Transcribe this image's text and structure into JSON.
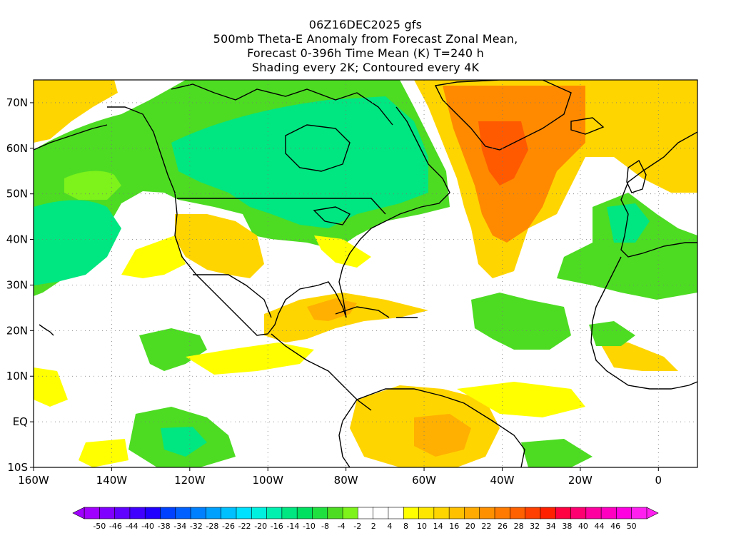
{
  "titles": {
    "line1": "06Z16DEC2025 gfs",
    "line2": "500mb Theta-E Anomaly from Forecast Zonal Mean,",
    "line3": "Forecast 0-396h Time Mean (K) T=240 h",
    "line4": "Shading every 2K; Contoured every 4K"
  },
  "map": {
    "lon_range": [
      -160,
      10
    ],
    "lat_range": [
      -10,
      75
    ],
    "x_ticks": [
      {
        "lon": -160,
        "label": "160W"
      },
      {
        "lon": -140,
        "label": "140W"
      },
      {
        "lon": -120,
        "label": "120W"
      },
      {
        "lon": -100,
        "label": "100W"
      },
      {
        "lon": -80,
        "label": "80W"
      },
      {
        "lon": -60,
        "label": "60W"
      },
      {
        "lon": -40,
        "label": "40W"
      },
      {
        "lon": -20,
        "label": "20W"
      },
      {
        "lon": 0,
        "label": "0"
      }
    ],
    "y_ticks": [
      {
        "lat": 70,
        "label": "70N"
      },
      {
        "lat": 60,
        "label": "60N"
      },
      {
        "lat": 50,
        "label": "50N"
      },
      {
        "lat": 40,
        "label": "40N"
      },
      {
        "lat": 30,
        "label": "30N"
      },
      {
        "lat": 20,
        "label": "20N"
      },
      {
        "lat": 10,
        "label": "10N"
      },
      {
        "lat": 0,
        "label": "EQ"
      },
      {
        "lat": -10,
        "label": "10S"
      }
    ],
    "grid": "dotted every 10 degrees",
    "colors": {
      "green_dark": "#00e680",
      "green": "#4ddc22",
      "green_light": "#7df21b",
      "yellow": "#ffff00",
      "yellow_orange": "#ffd500",
      "orange_light": "#ffb000",
      "orange": "#ff8a00",
      "red_orange": "#ff5a00"
    }
  },
  "colorbar": {
    "labels": [
      "-50",
      "-46",
      "-44",
      "-40",
      "-38",
      "-34",
      "-32",
      "-28",
      "-26",
      "-22",
      "-20",
      "-16",
      "-14",
      "-10",
      "-8",
      "-4",
      "-2",
      "2",
      "4",
      "8",
      "10",
      "14",
      "16",
      "20",
      "22",
      "26",
      "28",
      "32",
      "34",
      "38",
      "40",
      "44",
      "46",
      "50"
    ],
    "colors": [
      "#a000ff",
      "#8000ff",
      "#6000ff",
      "#4000ff",
      "#2000ff",
      "#0040ff",
      "#0060ff",
      "#0080ff",
      "#00a0ff",
      "#00c0ff",
      "#00e0ff",
      "#00f0e0",
      "#00f0b0",
      "#00e680",
      "#00e060",
      "#20e040",
      "#4ddc22",
      "#7df21b",
      "#ffffff",
      "#ffffff",
      "#ffffff",
      "#ffff00",
      "#ffe600",
      "#ffd500",
      "#ffc000",
      "#ffaa00",
      "#ff9000",
      "#ff7a00",
      "#ff6000",
      "#ff4000",
      "#ff2000",
      "#ff0040",
      "#ff0070",
      "#ff00a0",
      "#ff00c0",
      "#ff00e0",
      "#ff20f0"
    ]
  }
}
